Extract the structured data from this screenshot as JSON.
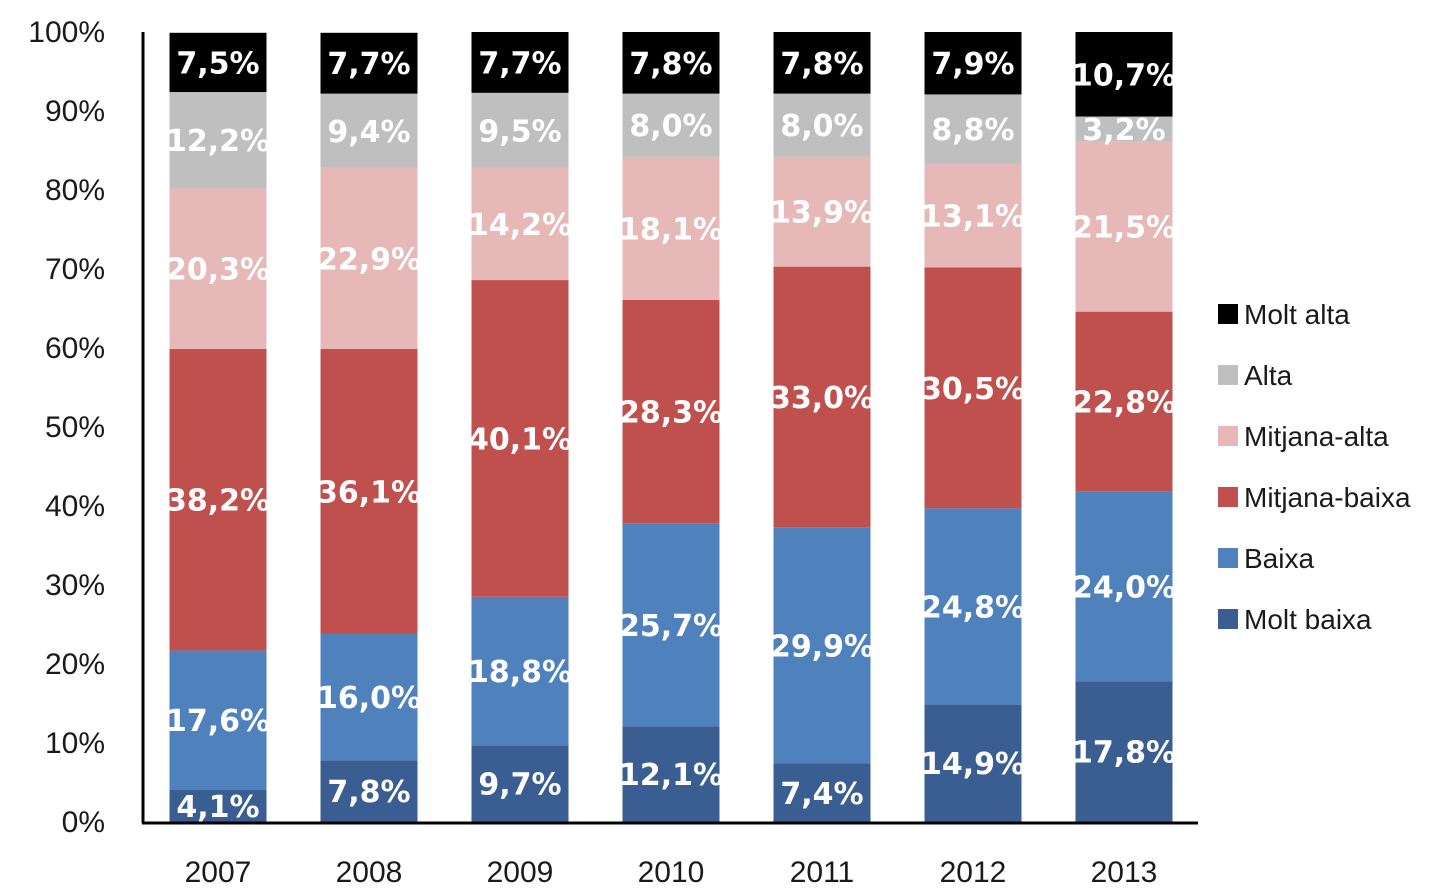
{
  "chart_data": {
    "type": "bar",
    "stacked": true,
    "percent": true,
    "title": "",
    "xlabel": "",
    "ylabel": "",
    "ylim": [
      0,
      100
    ],
    "yticks": [
      "0%",
      "10%",
      "20%",
      "30%",
      "40%",
      "50%",
      "60%",
      "70%",
      "80%",
      "90%",
      "100%"
    ],
    "categories": [
      "2007",
      "2008",
      "2009",
      "2010",
      "2011",
      "2012",
      "2013"
    ],
    "legend_position": "right",
    "grid": false,
    "series": [
      {
        "name": "Molt baixa",
        "color": "#3b5e92",
        "text_color": "#ffffff",
        "values": [
          4.1,
          7.8,
          9.7,
          12.1,
          7.4,
          14.9,
          17.8
        ],
        "labels": [
          "4,1%",
          "7,8%",
          "9,7%",
          "12,1%",
          "7,4%",
          "14,9%",
          "17,8%"
        ]
      },
      {
        "name": "Baixa",
        "color": "#4f81bd",
        "text_color": "#ffffff",
        "values": [
          17.6,
          16.0,
          18.8,
          25.7,
          29.9,
          24.8,
          24.0
        ],
        "labels": [
          "17,6%",
          "16,0%",
          "18,8%",
          "25,7%",
          "29,9%",
          "24,8%",
          "24,0%"
        ]
      },
      {
        "name": "Mitjana-baixa",
        "color": "#c0504d",
        "text_color": "#ffffff",
        "values": [
          38.2,
          36.1,
          40.1,
          28.3,
          33.0,
          30.5,
          22.8
        ],
        "labels": [
          "38,2%",
          "36,1%",
          "40,1%",
          "28,3%",
          "33,0%",
          "30,5%",
          "22,8%"
        ]
      },
      {
        "name": "Mitjana-alta",
        "color": "#e6b9b8",
        "text_color": "#ffffff",
        "values": [
          20.3,
          22.9,
          14.2,
          18.1,
          13.9,
          13.1,
          21.5
        ],
        "labels": [
          "20,3%",
          "22,9%",
          "14,2%",
          "18,1%",
          "13,9%",
          "13,1%",
          "21,5%"
        ]
      },
      {
        "name": "Alta",
        "color": "#bfbfbf",
        "text_color": "#ffffff",
        "values": [
          12.2,
          9.4,
          9.5,
          8.0,
          8.0,
          8.8,
          3.2
        ],
        "labels": [
          "12,2%",
          "9,4%",
          "9,5%",
          "8,0%",
          "8,0%",
          "8,8%",
          "3,2%"
        ]
      },
      {
        "name": "Molt alta",
        "color": "#000000",
        "text_color": "#ffffff",
        "values": [
          7.5,
          7.7,
          7.7,
          7.8,
          7.8,
          7.9,
          10.7
        ],
        "labels": [
          "7,5%",
          "7,7%",
          "7,7%",
          "7,8%",
          "7,8%",
          "7,9%",
          "10,7%"
        ]
      }
    ]
  }
}
